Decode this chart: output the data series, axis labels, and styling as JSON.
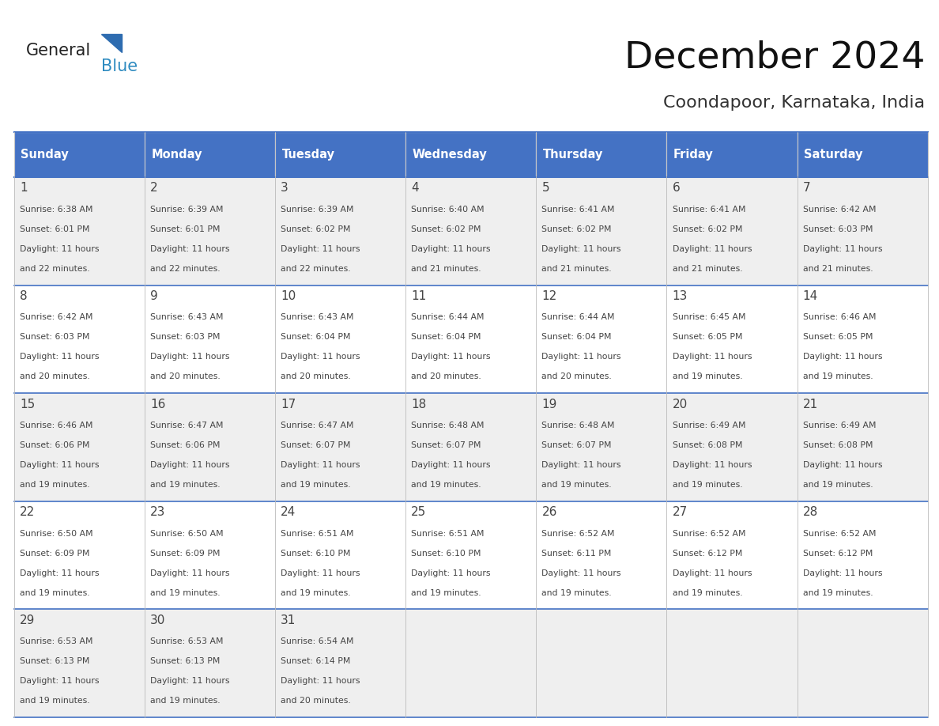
{
  "title": "December 2024",
  "subtitle": "Coondapoor, Karnataka, India",
  "header_color": "#4472C4",
  "header_text_color": "#FFFFFF",
  "day_names": [
    "Sunday",
    "Monday",
    "Tuesday",
    "Wednesday",
    "Thursday",
    "Friday",
    "Saturday"
  ],
  "bg_color": "#FFFFFF",
  "cell_bg_row0": "#EFEFEF",
  "cell_bg_row1": "#FFFFFF",
  "cell_bg_row2": "#EFEFEF",
  "cell_bg_row3": "#FFFFFF",
  "cell_bg_row4": "#EFEFEF",
  "cell_border_color": "#4472C4",
  "grid_line_color": "#BBBBBB",
  "text_color": "#444444",
  "logo_general_color": "#222222",
  "logo_blue_color": "#2E8BC0",
  "logo_triangle_color": "#2E6CB0",
  "days": [
    {
      "day": 1,
      "col": 0,
      "row": 0,
      "sunrise": "6:38 AM",
      "sunset": "6:01 PM",
      "daylight_min": 22
    },
    {
      "day": 2,
      "col": 1,
      "row": 0,
      "sunrise": "6:39 AM",
      "sunset": "6:01 PM",
      "daylight_min": 22
    },
    {
      "day": 3,
      "col": 2,
      "row": 0,
      "sunrise": "6:39 AM",
      "sunset": "6:02 PM",
      "daylight_min": 22
    },
    {
      "day": 4,
      "col": 3,
      "row": 0,
      "sunrise": "6:40 AM",
      "sunset": "6:02 PM",
      "daylight_min": 21
    },
    {
      "day": 5,
      "col": 4,
      "row": 0,
      "sunrise": "6:41 AM",
      "sunset": "6:02 PM",
      "daylight_min": 21
    },
    {
      "day": 6,
      "col": 5,
      "row": 0,
      "sunrise": "6:41 AM",
      "sunset": "6:02 PM",
      "daylight_min": 21
    },
    {
      "day": 7,
      "col": 6,
      "row": 0,
      "sunrise": "6:42 AM",
      "sunset": "6:03 PM",
      "daylight_min": 21
    },
    {
      "day": 8,
      "col": 0,
      "row": 1,
      "sunrise": "6:42 AM",
      "sunset": "6:03 PM",
      "daylight_min": 20
    },
    {
      "day": 9,
      "col": 1,
      "row": 1,
      "sunrise": "6:43 AM",
      "sunset": "6:03 PM",
      "daylight_min": 20
    },
    {
      "day": 10,
      "col": 2,
      "row": 1,
      "sunrise": "6:43 AM",
      "sunset": "6:04 PM",
      "daylight_min": 20
    },
    {
      "day": 11,
      "col": 3,
      "row": 1,
      "sunrise": "6:44 AM",
      "sunset": "6:04 PM",
      "daylight_min": 20
    },
    {
      "day": 12,
      "col": 4,
      "row": 1,
      "sunrise": "6:44 AM",
      "sunset": "6:04 PM",
      "daylight_min": 20
    },
    {
      "day": 13,
      "col": 5,
      "row": 1,
      "sunrise": "6:45 AM",
      "sunset": "6:05 PM",
      "daylight_min": 19
    },
    {
      "day": 14,
      "col": 6,
      "row": 1,
      "sunrise": "6:46 AM",
      "sunset": "6:05 PM",
      "daylight_min": 19
    },
    {
      "day": 15,
      "col": 0,
      "row": 2,
      "sunrise": "6:46 AM",
      "sunset": "6:06 PM",
      "daylight_min": 19
    },
    {
      "day": 16,
      "col": 1,
      "row": 2,
      "sunrise": "6:47 AM",
      "sunset": "6:06 PM",
      "daylight_min": 19
    },
    {
      "day": 17,
      "col": 2,
      "row": 2,
      "sunrise": "6:47 AM",
      "sunset": "6:07 PM",
      "daylight_min": 19
    },
    {
      "day": 18,
      "col": 3,
      "row": 2,
      "sunrise": "6:48 AM",
      "sunset": "6:07 PM",
      "daylight_min": 19
    },
    {
      "day": 19,
      "col": 4,
      "row": 2,
      "sunrise": "6:48 AM",
      "sunset": "6:07 PM",
      "daylight_min": 19
    },
    {
      "day": 20,
      "col": 5,
      "row": 2,
      "sunrise": "6:49 AM",
      "sunset": "6:08 PM",
      "daylight_min": 19
    },
    {
      "day": 21,
      "col": 6,
      "row": 2,
      "sunrise": "6:49 AM",
      "sunset": "6:08 PM",
      "daylight_min": 19
    },
    {
      "day": 22,
      "col": 0,
      "row": 3,
      "sunrise": "6:50 AM",
      "sunset": "6:09 PM",
      "daylight_min": 19
    },
    {
      "day": 23,
      "col": 1,
      "row": 3,
      "sunrise": "6:50 AM",
      "sunset": "6:09 PM",
      "daylight_min": 19
    },
    {
      "day": 24,
      "col": 2,
      "row": 3,
      "sunrise": "6:51 AM",
      "sunset": "6:10 PM",
      "daylight_min": 19
    },
    {
      "day": 25,
      "col": 3,
      "row": 3,
      "sunrise": "6:51 AM",
      "sunset": "6:10 PM",
      "daylight_min": 19
    },
    {
      "day": 26,
      "col": 4,
      "row": 3,
      "sunrise": "6:52 AM",
      "sunset": "6:11 PM",
      "daylight_min": 19
    },
    {
      "day": 27,
      "col": 5,
      "row": 3,
      "sunrise": "6:52 AM",
      "sunset": "6:12 PM",
      "daylight_min": 19
    },
    {
      "day": 28,
      "col": 6,
      "row": 3,
      "sunrise": "6:52 AM",
      "sunset": "6:12 PM",
      "daylight_min": 19
    },
    {
      "day": 29,
      "col": 0,
      "row": 4,
      "sunrise": "6:53 AM",
      "sunset": "6:13 PM",
      "daylight_min": 19
    },
    {
      "day": 30,
      "col": 1,
      "row": 4,
      "sunrise": "6:53 AM",
      "sunset": "6:13 PM",
      "daylight_min": 19
    },
    {
      "day": 31,
      "col": 2,
      "row": 4,
      "sunrise": "6:54 AM",
      "sunset": "6:14 PM",
      "daylight_min": 20
    }
  ],
  "num_rows": 5,
  "num_cols": 7,
  "fig_width": 11.88,
  "fig_height": 9.18,
  "dpi": 100
}
